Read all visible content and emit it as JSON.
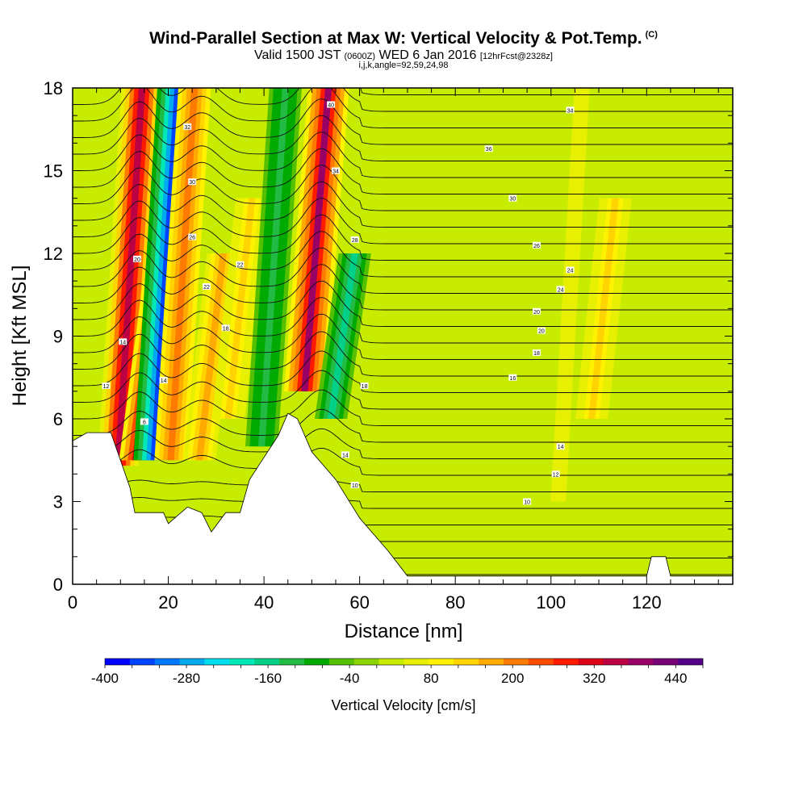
{
  "header": {
    "title": "Wind-Parallel Section at Max W: Vertical Velocity & Pot.Temp.",
    "copyright_mark": "(C)",
    "valid_label": "Valid 1500 JST",
    "zulu_time": "(0600Z)",
    "date_text": "WED 6 Jan 2016",
    "forecast_text": "[12hrFcst@2328z]",
    "section_info": "i,j,k,angle=92,59,24,98"
  },
  "chart_data": {
    "type": "heatmap",
    "title": "Wind-Parallel Section at Max W: Vertical Velocity & Pot.Temp.",
    "xlabel": "Distance [nm]",
    "ylabel": "Height [Kft MSL]",
    "xlim": [
      0,
      138
    ],
    "ylim": [
      0,
      18
    ],
    "x_ticks": [
      0,
      20,
      40,
      60,
      80,
      100,
      120
    ],
    "y_ticks": [
      0,
      3,
      6,
      9,
      12,
      15,
      18
    ],
    "colorbar": {
      "label": "Vertical Velocity [cm/s]",
      "tick_labels": [
        -400,
        -280,
        -160,
        -40,
        80,
        200,
        320,
        440
      ],
      "range": [
        -400,
        480
      ],
      "colors": [
        "#0000ff",
        "#0044ff",
        "#0077ff",
        "#00aaee",
        "#00ddee",
        "#00e8b8",
        "#00d088",
        "#22bb44",
        "#00aa00",
        "#55c000",
        "#8bd400",
        "#c8ec00",
        "#e6f000",
        "#fff200",
        "#ffd400",
        "#ffaa00",
        "#ff7a00",
        "#ff4c00",
        "#ff1a00",
        "#dd0018",
        "#bb0044",
        "#990066",
        "#770077",
        "#550088"
      ]
    },
    "w_bands": [
      {
        "x": 12,
        "w": 340,
        "top": 18,
        "bottom": 4.3
      },
      {
        "x": 16.5,
        "w": 420,
        "top": 11,
        "bottom": 4.5
      },
      {
        "x": 19.5,
        "w": -330,
        "top": 18,
        "bottom": 4.5
      },
      {
        "x": 23,
        "w": 200,
        "top": 18,
        "bottom": 4.5
      },
      {
        "x": 29,
        "w": 160,
        "top": 12,
        "bottom": 4.5
      },
      {
        "x": 35,
        "w": 130,
        "top": 14,
        "bottom": 6
      },
      {
        "x": 42,
        "w": -130,
        "top": 18,
        "bottom": 5
      },
      {
        "x": 51,
        "w": 380,
        "top": 18,
        "bottom": 7
      },
      {
        "x": 56.5,
        "w": -150,
        "top": 12,
        "bottom": 6
      },
      {
        "x": 104,
        "w": 60,
        "top": 18,
        "bottom": 3
      },
      {
        "x": 111,
        "w": 120,
        "top": 14,
        "bottom": 6
      }
    ],
    "terrain": [
      [
        0,
        5.2
      ],
      [
        3,
        5.5
      ],
      [
        8,
        5.5
      ],
      [
        12,
        3.5
      ],
      [
        13,
        2.6
      ],
      [
        19,
        2.6
      ],
      [
        20,
        2.2
      ],
      [
        24,
        2.8
      ],
      [
        27,
        2.6
      ],
      [
        29,
        1.9
      ],
      [
        32,
        2.6
      ],
      [
        35,
        2.6
      ],
      [
        37,
        3.8
      ],
      [
        40,
        4.6
      ],
      [
        43,
        5.4
      ],
      [
        45,
        6.2
      ],
      [
        47,
        6.0
      ],
      [
        50,
        4.8
      ],
      [
        55,
        3.8
      ],
      [
        60,
        2.4
      ],
      [
        66,
        1.2
      ],
      [
        70,
        0.3
      ],
      [
        120,
        0.3
      ],
      [
        121,
        1.0
      ],
      [
        124,
        1.0
      ],
      [
        125,
        0.3
      ],
      [
        138,
        0.3
      ]
    ],
    "theta_contour_labels": [
      {
        "x": 7,
        "y": 7.2,
        "text": "12"
      },
      {
        "x": 10.5,
        "y": 8.8,
        "text": "14"
      },
      {
        "x": 13.5,
        "y": 11.8,
        "text": "20"
      },
      {
        "x": 15,
        "y": 5.9,
        "text": "6"
      },
      {
        "x": 19,
        "y": 7.4,
        "text": "14"
      },
      {
        "x": 24,
        "y": 16.6,
        "text": "32"
      },
      {
        "x": 25,
        "y": 14.6,
        "text": "30"
      },
      {
        "x": 25,
        "y": 12.6,
        "text": "26"
      },
      {
        "x": 28,
        "y": 10.8,
        "text": "22"
      },
      {
        "x": 32,
        "y": 9.3,
        "text": "18"
      },
      {
        "x": 35,
        "y": 11.6,
        "text": "22"
      },
      {
        "x": 54,
        "y": 17.4,
        "text": "40"
      },
      {
        "x": 55,
        "y": 15.0,
        "text": "34"
      },
      {
        "x": 59,
        "y": 12.5,
        "text": "28"
      },
      {
        "x": 61,
        "y": 7.2,
        "text": "18"
      },
      {
        "x": 57,
        "y": 4.7,
        "text": "14"
      },
      {
        "x": 59,
        "y": 3.6,
        "text": "10"
      },
      {
        "x": 87,
        "y": 15.8,
        "text": "36"
      },
      {
        "x": 92,
        "y": 14.0,
        "text": "30"
      },
      {
        "x": 97,
        "y": 12.3,
        "text": "26"
      },
      {
        "x": 104,
        "y": 11.4,
        "text": "24"
      },
      {
        "x": 102,
        "y": 10.7,
        "text": "24"
      },
      {
        "x": 97,
        "y": 9.9,
        "text": "20"
      },
      {
        "x": 98,
        "y": 9.2,
        "text": "20"
      },
      {
        "x": 97,
        "y": 8.4,
        "text": "18"
      },
      {
        "x": 92,
        "y": 7.5,
        "text": "16"
      },
      {
        "x": 102,
        "y": 5.0,
        "text": "14"
      },
      {
        "x": 101,
        "y": 4.0,
        "text": "12"
      },
      {
        "x": 95,
        "y": 3.0,
        "text": "10"
      },
      {
        "x": 104,
        "y": 17.2,
        "text": "34"
      }
    ]
  }
}
